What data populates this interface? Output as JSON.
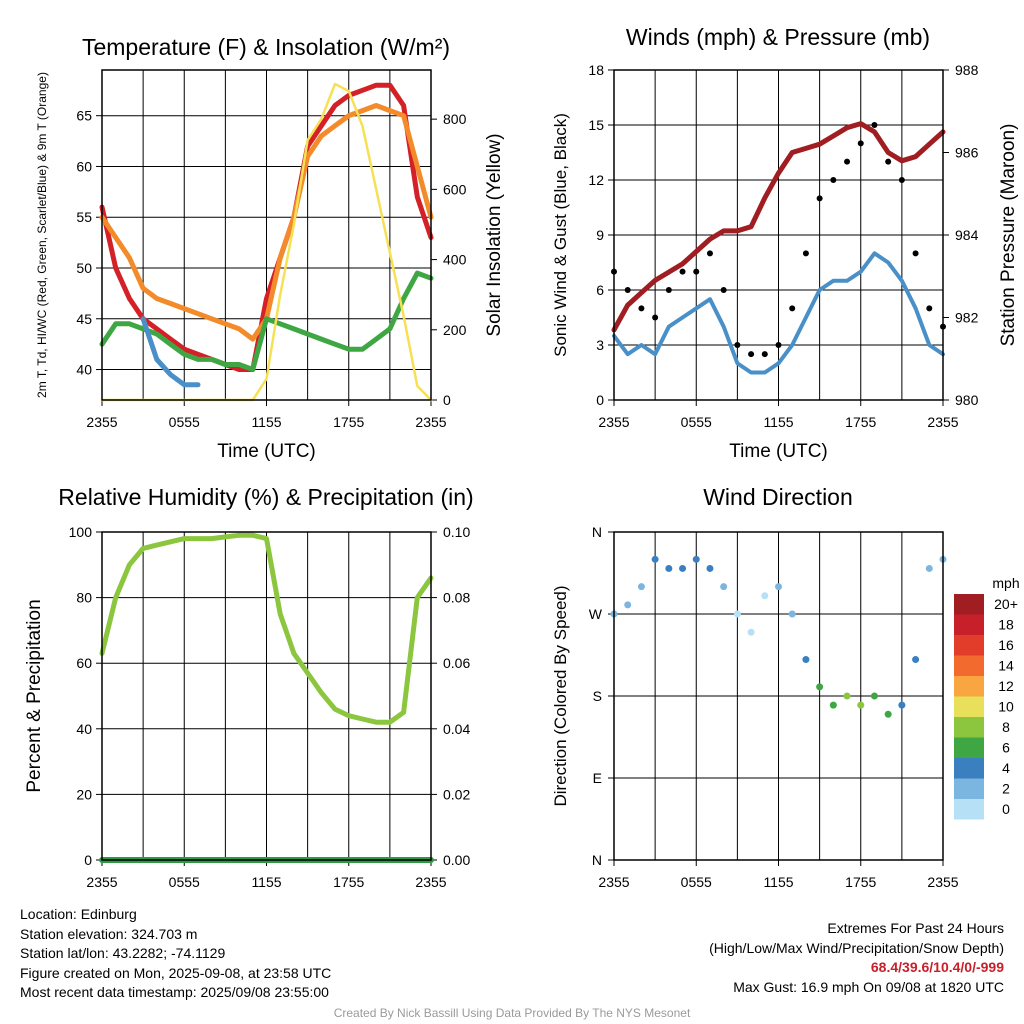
{
  "chart_data": [
    {
      "type": "line",
      "title": "Temperature (F) & Insolation (W/m²)",
      "xlabel": "Time (UTC)",
      "ylabel": "2m T, Td, HI/WC (Red, Green, Scarlet/Blue) & 9m T (Orange)",
      "ylabel_right": "Solar Insolation (Yellow)",
      "x_ticks": [
        "2355",
        "0555",
        "1155",
        "1755",
        "2355"
      ],
      "ylim": [
        37,
        69.5
      ],
      "y_ticks": [
        40,
        45,
        50,
        55,
        60,
        65
      ],
      "ylim_right": [
        0,
        940
      ],
      "y_ticks_right": [
        0,
        200,
        400,
        600,
        800
      ],
      "x_hours": [
        0,
        1,
        2,
        3,
        4,
        5,
        6,
        7,
        8,
        9,
        10,
        11,
        12,
        13,
        14,
        15,
        16,
        17,
        18,
        19,
        20,
        21,
        22,
        23,
        24
      ],
      "series": [
        {
          "name": "2m T",
          "color": "#d42027",
          "values": [
            56,
            50,
            47,
            45,
            44,
            43,
            42,
            41.5,
            41,
            40.5,
            40,
            40,
            47,
            51,
            55,
            62,
            64,
            66,
            67,
            67.5,
            68,
            68,
            66,
            57,
            53
          ]
        },
        {
          "name": "9m T",
          "color": "#f38b2b",
          "values": [
            55,
            53,
            51,
            48,
            47,
            46.5,
            46,
            45.5,
            45,
            44.5,
            44,
            43,
            45,
            51,
            55,
            61,
            63,
            64,
            65,
            65.5,
            66,
            65.5,
            65,
            60,
            55
          ]
        },
        {
          "name": "Td",
          "color": "#3ea744",
          "values": [
            42.5,
            44.5,
            44.5,
            44,
            43.5,
            42.5,
            41.5,
            41,
            41,
            40.5,
            40.5,
            40,
            45,
            44.5,
            44,
            43.5,
            43,
            42.5,
            42,
            42,
            43,
            44,
            47,
            49.5,
            49
          ]
        },
        {
          "name": "HI/WC",
          "color": "#4a90c8",
          "values": [
            null,
            null,
            null,
            45,
            41,
            39.5,
            38.5,
            38.5,
            null,
            null,
            null,
            null,
            null,
            null,
            null,
            null,
            null,
            null,
            null,
            null,
            null,
            null,
            null,
            null,
            null
          ]
        },
        {
          "name": "Solar Insolation",
          "axis": "right",
          "color": "#f6e155",
          "values": [
            0,
            0,
            0,
            0,
            0,
            0,
            0,
            0,
            0,
            0,
            0,
            0,
            60,
            300,
            500,
            740,
            800,
            900,
            880,
            780,
            600,
            420,
            240,
            40,
            0
          ]
        }
      ]
    },
    {
      "type": "scatter",
      "title": "Winds (mph) & Pressure (mb)",
      "xlabel": "Time (UTC)",
      "ylabel": "Sonic Wind & Gust (Blue, Black)",
      "ylabel_right": "Station Pressure (Maroon)",
      "x_ticks": [
        "2355",
        "0555",
        "1155",
        "1755",
        "2355"
      ],
      "ylim": [
        0,
        18
      ],
      "y_ticks": [
        0,
        3,
        6,
        9,
        12,
        15,
        18
      ],
      "ylim_right": [
        980,
        988
      ],
      "y_ticks_right": [
        980,
        982,
        984,
        986,
        988
      ],
      "x_hours": [
        0,
        1,
        2,
        3,
        4,
        5,
        6,
        7,
        8,
        9,
        10,
        11,
        12,
        13,
        14,
        15,
        16,
        17,
        18,
        19,
        20,
        21,
        22,
        23,
        24
      ],
      "series": [
        {
          "name": "Sonic Wind",
          "color": "#4a90c8",
          "values": [
            3.5,
            2.5,
            3,
            2.5,
            4,
            4.5,
            5,
            5.5,
            4,
            2,
            1.5,
            1.5,
            2,
            3,
            4.5,
            6,
            6.5,
            6.5,
            7,
            8,
            7.5,
            6.5,
            5,
            3,
            2.5
          ]
        },
        {
          "name": "Gust",
          "color": "#000000",
          "values": [
            7,
            6,
            5,
            4.5,
            6,
            7,
            7,
            8,
            6,
            3,
            2.5,
            2.5,
            3,
            5,
            8,
            11,
            12,
            13,
            14,
            15,
            13,
            12,
            8,
            5,
            4
          ]
        },
        {
          "name": "Station Pressure",
          "axis": "right",
          "color": "#a01d22",
          "values": [
            981.7,
            982.3,
            982.6,
            982.9,
            983.1,
            983.3,
            983.6,
            983.9,
            984.1,
            984.1,
            984.2,
            984.9,
            985.5,
            986.0,
            986.1,
            986.2,
            986.4,
            986.6,
            986.7,
            986.5,
            986.0,
            985.8,
            985.9,
            986.2,
            986.5
          ]
        }
      ]
    },
    {
      "type": "line",
      "title": "Relative Humidity (%) & Precipitation (in)",
      "ylabel": "Percent & Precipitation",
      "x_ticks": [
        "2355",
        "0555",
        "1155",
        "1755",
        "2355"
      ],
      "ylim": [
        0,
        100
      ],
      "y_ticks": [
        0,
        20,
        40,
        60,
        80,
        100
      ],
      "ylim_right": [
        0,
        0.1
      ],
      "y_ticks_right": [
        "0.00",
        "0.02",
        "0.04",
        "0.06",
        "0.08",
        "0.10"
      ],
      "x_hours": [
        0,
        1,
        2,
        3,
        4,
        5,
        6,
        7,
        8,
        9,
        10,
        11,
        12,
        13,
        14,
        15,
        16,
        17,
        18,
        19,
        20,
        21,
        22,
        23,
        24
      ],
      "series": [
        {
          "name": "Relative Humidity",
          "color": "#8cc63f",
          "values": [
            63,
            80,
            90,
            95,
            96,
            97,
            98,
            98,
            98,
            98.5,
            99,
            99,
            98,
            75,
            63,
            57,
            51,
            46,
            44,
            43,
            42,
            42,
            45,
            80,
            86
          ]
        },
        {
          "name": "Precipitation",
          "axis": "right",
          "color": "#2e9a45",
          "values": [
            0,
            0,
            0,
            0,
            0,
            0,
            0,
            0,
            0,
            0,
            0,
            0,
            0,
            0,
            0,
            0,
            0,
            0,
            0,
            0,
            0,
            0,
            0,
            0,
            0
          ]
        }
      ]
    },
    {
      "type": "scatter",
      "title": "Wind Direction",
      "ylabel": "Direction (Colored By Speed)",
      "x_ticks": [
        "2355",
        "0555",
        "1155",
        "1755",
        "2355"
      ],
      "y_ticks": [
        "N",
        "E",
        "S",
        "W",
        "N"
      ],
      "ylim": [
        0,
        360
      ],
      "colorbar": {
        "unit": "mph",
        "labels": [
          "20+",
          "18",
          "16",
          "14",
          "12",
          "10",
          "8",
          "6",
          "4",
          "2",
          "0"
        ],
        "colors": [
          "#a01d22",
          "#c8202a",
          "#e23c2a",
          "#f26a2e",
          "#f9a541",
          "#e8df5a",
          "#8cc63f",
          "#3ea744",
          "#3a7fc0",
          "#7ab6e0",
          "#b6e0f6"
        ]
      },
      "series": [
        {
          "name": "Wind Direction",
          "x_hours": [
            0,
            1,
            2,
            3,
            4,
            5,
            6,
            7,
            8,
            9,
            10,
            11,
            12,
            13,
            14,
            15,
            16,
            17,
            18,
            19,
            20,
            21,
            22,
            23,
            24
          ],
          "values": [
            270,
            280,
            300,
            330,
            320,
            320,
            330,
            320,
            300,
            270,
            250,
            290,
            300,
            270,
            220,
            190,
            170,
            180,
            170,
            180,
            160,
            170,
            220,
            320,
            330
          ],
          "speeds": [
            3,
            3,
            2.5,
            4,
            5,
            5,
            5,
            4,
            3,
            1.5,
            1.5,
            1.5,
            2,
            3,
            5,
            6,
            7,
            8,
            8,
            7,
            6,
            5,
            4,
            3,
            3
          ]
        }
      ]
    }
  ],
  "info": {
    "location": "Location: Edinburg",
    "elevation": "Station elevation: 324.703 m",
    "latlon": "Station lat/lon: 43.2282; -74.1129",
    "created": "Figure created on Mon, 2025-09-08, at 23:58 UTC",
    "recent": "Most recent data timestamp: 2025/09/08 23:55:00",
    "extremes_title": "Extremes For Past 24 Hours",
    "extremes_sub": "(High/Low/Max Wind/Precipitation/Snow Depth)",
    "extremes_values": "68.4/39.6/10.4/0/-999",
    "max_gust": "Max Gust: 16.9 mph On 09/08 at 1820 UTC",
    "credit": "Created By Nick Bassill Using Data Provided By The NYS Mesonet"
  }
}
